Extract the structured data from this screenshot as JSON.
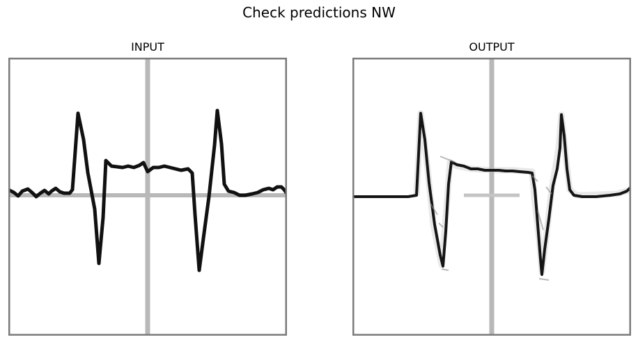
{
  "figure": {
    "title": "Check predictions NW",
    "panels": [
      {
        "title": "INPUT",
        "icon": "ecg-trace-clean-icon"
      },
      {
        "title": "OUTPUT",
        "icon": "ecg-trace-reconstructed-icon"
      }
    ],
    "colors": {
      "frame": "#7a7a7a",
      "crosshair": "#b8b8b8",
      "trace": "#111111"
    }
  }
}
